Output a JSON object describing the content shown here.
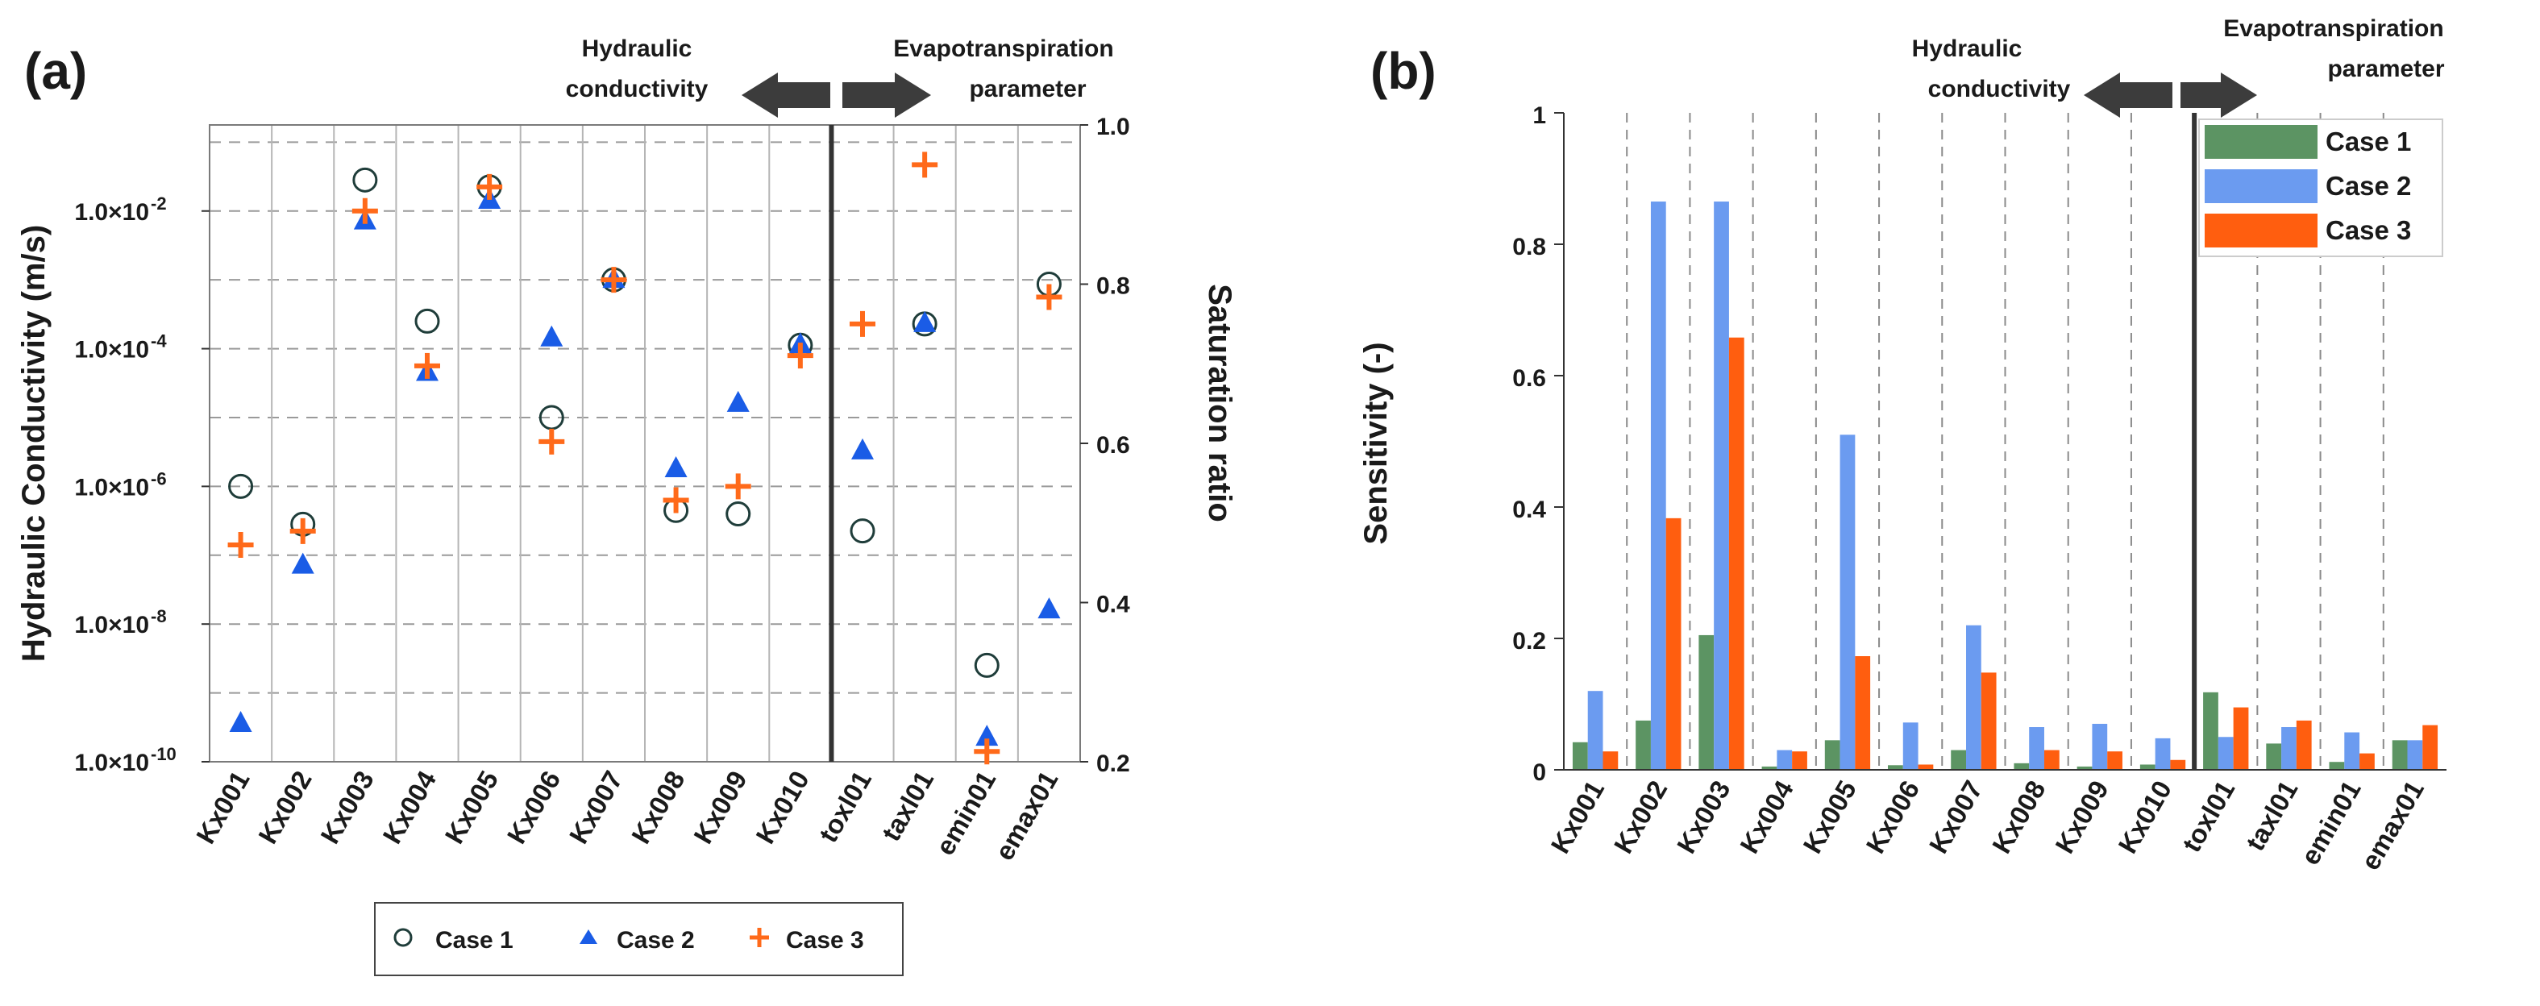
{
  "chart_data": [
    {
      "panel": "(a)",
      "type": "scatter",
      "categories": [
        "Kx001",
        "Kx002",
        "Kx003",
        "Kx004",
        "Kx005",
        "Kx006",
        "Kx007",
        "Kx008",
        "Kx009",
        "Kx010",
        "toxl01",
        "taxl01",
        "emin01",
        "emax01"
      ],
      "ylabel": "Hydraulic Conductivity (m/s)",
      "ylabel_right": "Saturation ratio",
      "y_scale": "log",
      "ylim_exponent": [
        -10,
        -0.75
      ],
      "y_ticks": [
        {
          "base": "1.0×10",
          "exp": "-2",
          "value_exp": -2
        },
        {
          "base": "1.0×10",
          "exp": "-4",
          "value_exp": -4
        },
        {
          "base": "1.0×10",
          "exp": "-6",
          "value_exp": -6
        },
        {
          "base": "1.0×10",
          "exp": "-8",
          "value_exp": -8
        },
        {
          "base": "1.0×10",
          "exp": "-10",
          "value_exp": -10
        }
      ],
      "right_ticks": [
        "1.0",
        "0.8",
        "0.6",
        "0.4",
        "0.2"
      ],
      "right_tick_values": [
        1.0,
        0.8,
        0.6,
        0.4,
        0.2
      ],
      "right_ylim": [
        0.2,
        1.0
      ],
      "separator_after_index": 9,
      "annotation_left": [
        "Hydraulic",
        "conductivity"
      ],
      "annotation_right": [
        "Evapotranspiration",
        "parameter"
      ],
      "series": [
        {
          "name": "Case 1",
          "marker": "circle",
          "color": "#1f3d3a",
          "log10_values": [
            -6.0,
            -6.55,
            -1.55,
            -3.6,
            -1.65,
            -5.0,
            -3.0,
            -6.35,
            -6.4,
            -3.95,
            null,
            null,
            -8.6,
            null
          ],
          "ratio_values": [
            null,
            null,
            null,
            null,
            null,
            null,
            null,
            null,
            null,
            null,
            0.49,
            0.75,
            null,
            0.8
          ]
        },
        {
          "name": "Case 2",
          "marker": "triangle",
          "color": "#1a5ce6",
          "log10_values": [
            -9.45,
            -7.15,
            -2.15,
            -4.35,
            -1.85,
            -3.85,
            -3.0,
            -5.75,
            -4.8,
            -3.95,
            null,
            null,
            -9.65,
            -7.8
          ],
          "ratio_values": [
            null,
            null,
            null,
            null,
            null,
            null,
            null,
            null,
            null,
            null,
            0.59,
            0.75,
            null,
            null
          ]
        },
        {
          "name": "Case 3",
          "marker": "plus",
          "color": "#ff6a1a",
          "log10_values": [
            -6.85,
            -6.65,
            -2.0,
            -4.25,
            -1.65,
            -5.35,
            -3.0,
            -6.2,
            -6.0,
            -4.1,
            null,
            null,
            -9.85,
            -3.25
          ],
          "ratio_values": [
            null,
            null,
            null,
            null,
            null,
            null,
            null,
            null,
            null,
            null,
            0.75,
            0.95,
            null,
            null
          ]
        }
      ]
    },
    {
      "panel": "(b)",
      "type": "bar",
      "categories": [
        "Kx001",
        "Kx002",
        "Kx003",
        "Kx004",
        "Kx005",
        "Kx006",
        "Kx007",
        "Kx008",
        "Kx009",
        "Kx010",
        "toxl01",
        "taxl01",
        "emin01",
        "emax01"
      ],
      "ylabel": "Sensitivity (-)",
      "ylim": [
        0,
        1
      ],
      "y_ticks": [
        "0",
        "0.2",
        "0.4",
        "0.6",
        "0.8",
        "1"
      ],
      "y_tick_values": [
        0,
        0.2,
        0.4,
        0.6,
        0.8,
        1
      ],
      "separator_after_index": 9,
      "annotation_left": [
        "Hydraulic",
        "conductivity"
      ],
      "annotation_right": [
        "Evapotranspiration",
        "parameter"
      ],
      "legend_position": "top-right",
      "series": [
        {
          "name": "Case 1",
          "color": "#5c9463",
          "values": [
            0.042,
            0.075,
            0.205,
            0.005,
            0.045,
            0.007,
            0.03,
            0.01,
            0.005,
            0.008,
            0.118,
            0.04,
            0.012,
            0.045
          ]
        },
        {
          "name": "Case 2",
          "color": "#6b9bf0",
          "values": [
            0.12,
            0.865,
            0.865,
            0.03,
            0.51,
            0.072,
            0.22,
            0.065,
            0.07,
            0.048,
            0.05,
            0.065,
            0.057,
            0.045
          ]
        },
        {
          "name": "Case 3",
          "color": "#ff5e0f",
          "values": [
            0.028,
            0.383,
            0.658,
            0.028,
            0.173,
            0.008,
            0.148,
            0.03,
            0.028,
            0.015,
            0.095,
            0.075,
            0.025,
            0.068
          ]
        }
      ]
    }
  ]
}
